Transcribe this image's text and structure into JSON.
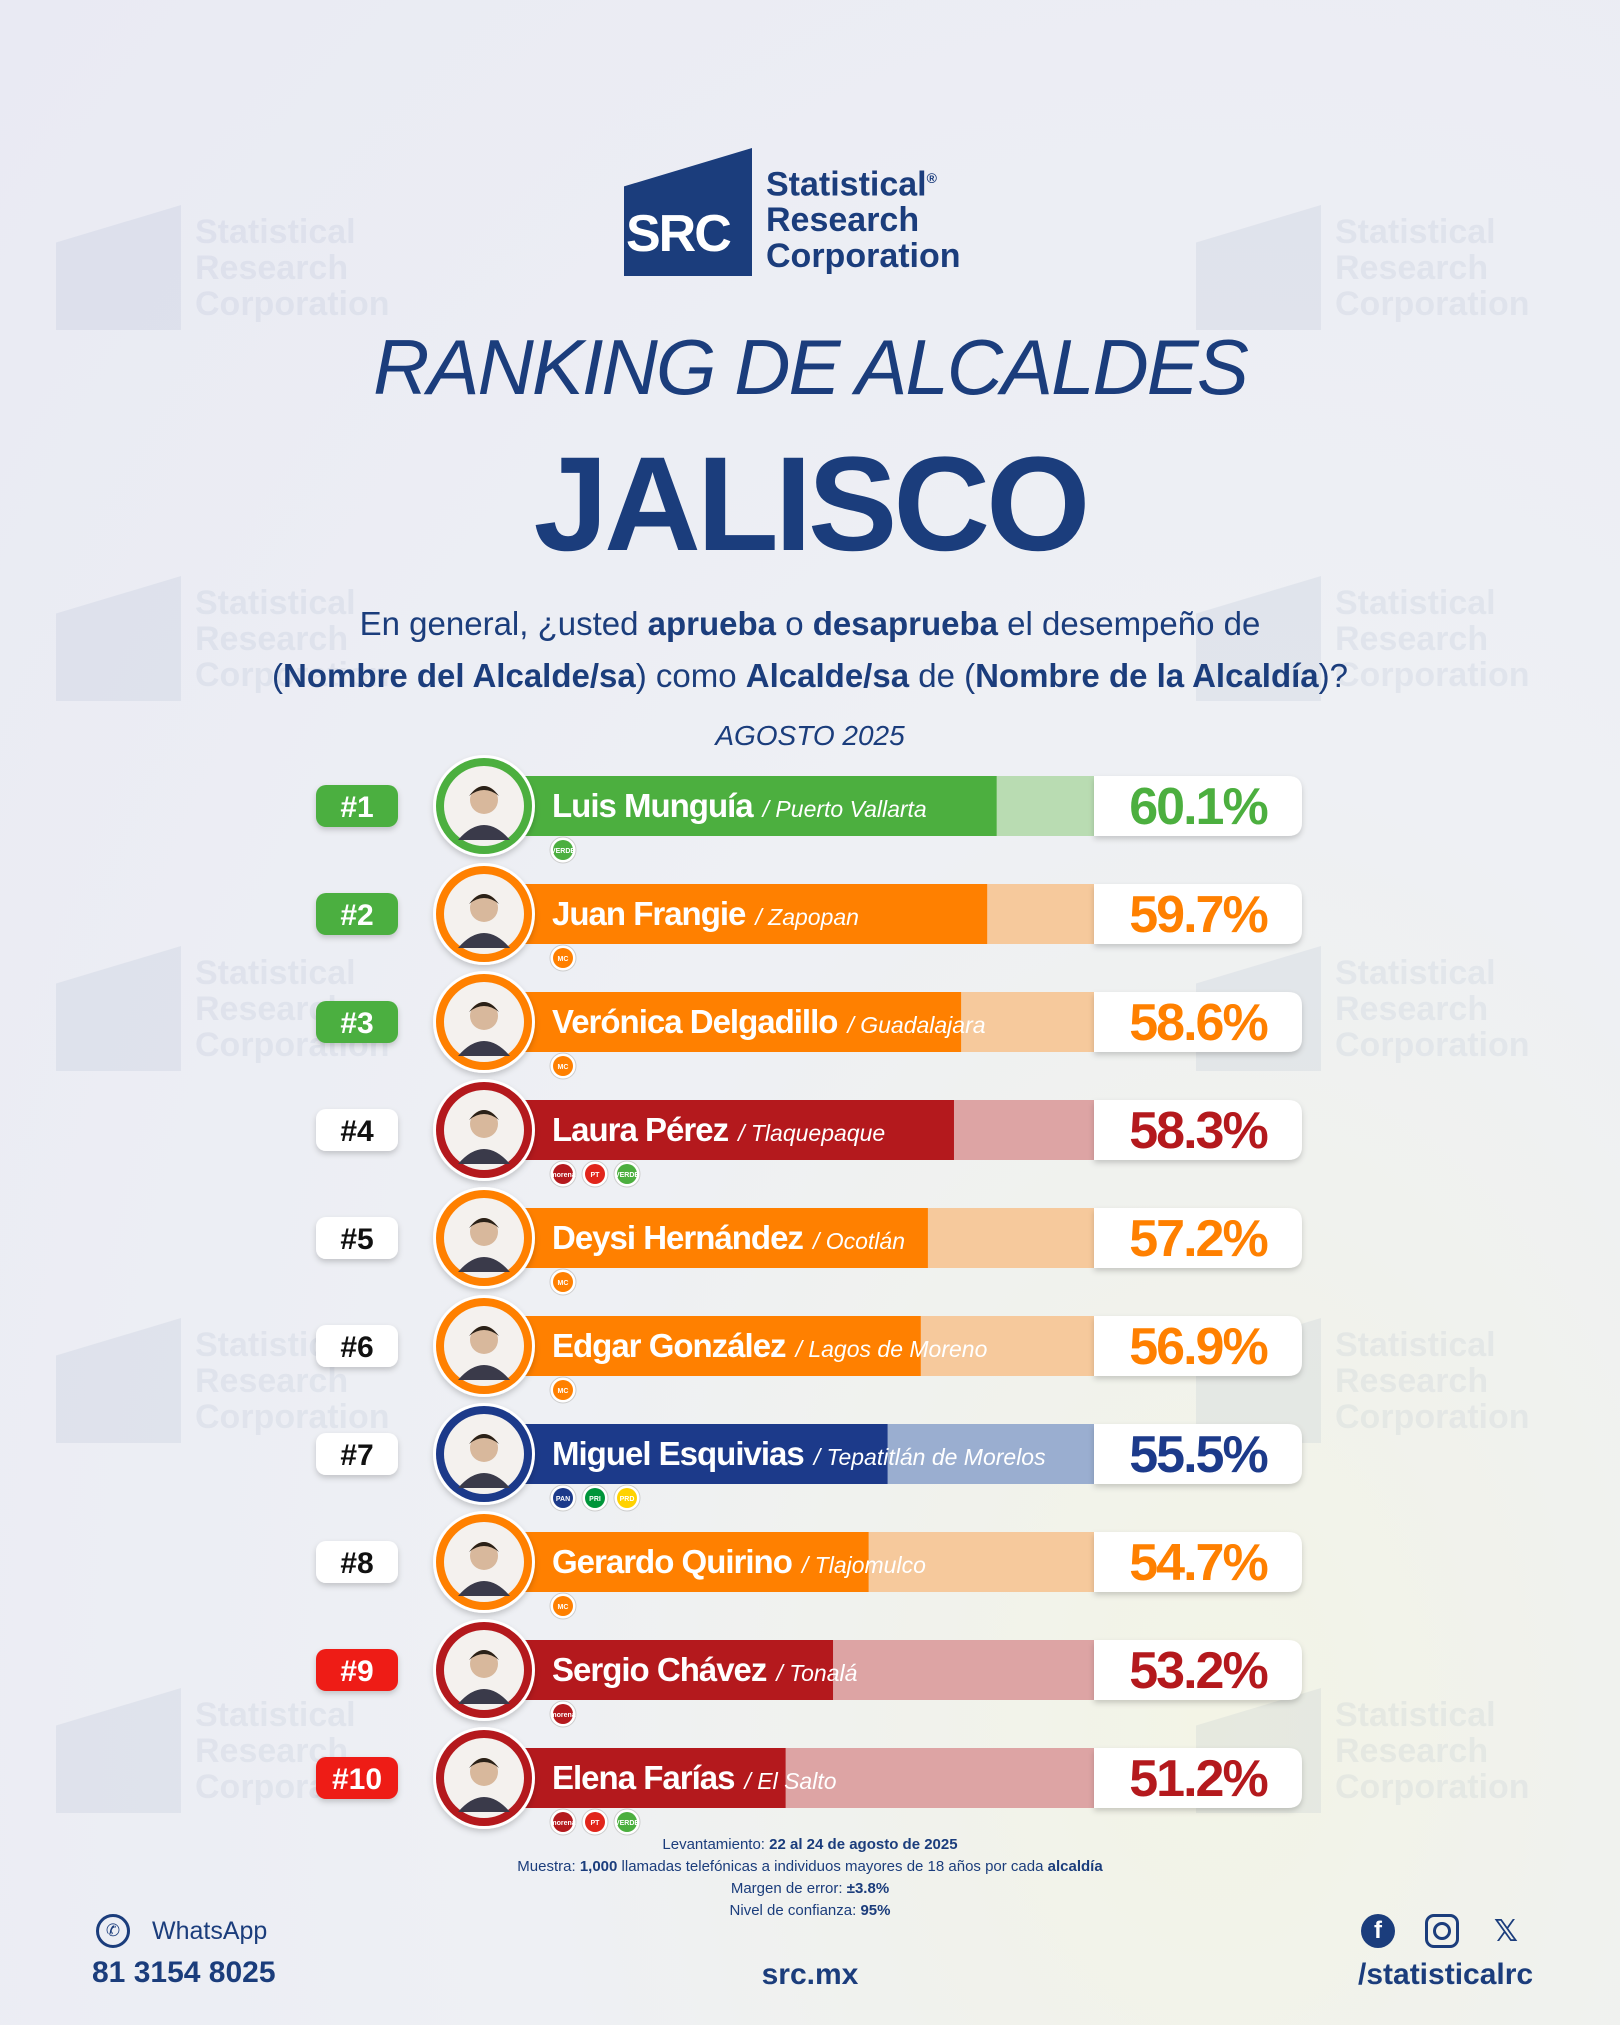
{
  "brand": {
    "abbr": "SRC",
    "line1": "Statistical",
    "line2": "Research",
    "line3": "Corporation",
    "registered": "®"
  },
  "title": {
    "italic": "RANKING DE ALCALDES",
    "main": "JALISCO"
  },
  "question": {
    "p1": "En general, ¿usted ",
    "b1": "aprueba",
    "p2": " o ",
    "b2": "desaprueba",
    "p3": " el desempeño de",
    "p4": "(",
    "b3": "Nombre del Alcalde/sa",
    "p5": ") como ",
    "b4": "Alcalde/sa",
    "p6": " de (",
    "b5": "Nombre de la Alcaldía",
    "p7": ")?"
  },
  "period": "AGOSTO 2025",
  "colors": {
    "verde": "#4caf3f",
    "mc": "#ff8000",
    "morena": "#b4191d",
    "pan": "#1c3a8a",
    "navy": "#1b3d7c",
    "rank_green": "#4caf3f",
    "rank_red": "#ee1c16"
  },
  "chart_data": {
    "type": "bar",
    "unit": "%",
    "xlim": [
      0,
      100
    ],
    "rows": [
      {
        "rank": "#1",
        "name": "Luis Munguía",
        "place": "Puerto Vallarta",
        "value": 60.1,
        "label": "60.1%",
        "party_color": "verde",
        "rank_style": "green",
        "parties": [
          {
            "label": "VERDE",
            "color": "#4caf3f"
          }
        ]
      },
      {
        "rank": "#2",
        "name": "Juan Frangie",
        "place": "Zapopan",
        "value": 59.7,
        "label": "59.7%",
        "party_color": "mc",
        "rank_style": "green",
        "parties": [
          {
            "label": "MC",
            "color": "#ff8000"
          }
        ]
      },
      {
        "rank": "#3",
        "name": "Verónica Delgadillo",
        "place": "Guadalajara",
        "value": 58.6,
        "label": "58.6%",
        "party_color": "mc",
        "rank_style": "green",
        "parties": [
          {
            "label": "MC",
            "color": "#ff8000"
          }
        ]
      },
      {
        "rank": "#4",
        "name": "Laura Pérez",
        "place": "Tlaquepaque",
        "value": 58.3,
        "label": "58.3%",
        "party_color": "morena",
        "rank_style": "white",
        "parties": [
          {
            "label": "morena",
            "color": "#b4191d"
          },
          {
            "label": "PT",
            "color": "#e1251b"
          },
          {
            "label": "VERDE",
            "color": "#4caf3f"
          }
        ]
      },
      {
        "rank": "#5",
        "name": "Deysi Hernández",
        "place": "Ocotlán",
        "value": 57.2,
        "label": "57.2%",
        "party_color": "mc",
        "rank_style": "white",
        "parties": [
          {
            "label": "MC",
            "color": "#ff8000"
          }
        ]
      },
      {
        "rank": "#6",
        "name": "Edgar González",
        "place": "Lagos de Moreno",
        "value": 56.9,
        "label": "56.9%",
        "party_color": "mc",
        "rank_style": "white",
        "parties": [
          {
            "label": "MC",
            "color": "#ff8000"
          }
        ]
      },
      {
        "rank": "#7",
        "name": "Miguel Esquivias",
        "place": "Tepatitlán de Morelos",
        "value": 55.5,
        "label": "55.5%",
        "party_color": "pan",
        "rank_style": "white",
        "parties": [
          {
            "label": "PAN",
            "color": "#1c3a8a"
          },
          {
            "label": "PRI",
            "color": "#00953a"
          },
          {
            "label": "PRD",
            "color": "#ffd200"
          }
        ]
      },
      {
        "rank": "#8",
        "name": "Gerardo Quirino",
        "place": "Tlajomulco",
        "value": 54.7,
        "label": "54.7%",
        "party_color": "mc",
        "rank_style": "white",
        "parties": [
          {
            "label": "MC",
            "color": "#ff8000"
          }
        ]
      },
      {
        "rank": "#9",
        "name": "Sergio Chávez",
        "place": "Tonalá",
        "value": 53.2,
        "label": "53.2%",
        "party_color": "morena",
        "rank_style": "red",
        "parties": [
          {
            "label": "morena",
            "color": "#b4191d"
          }
        ]
      },
      {
        "rank": "#10",
        "name": "Elena Farías",
        "place": "El Salto",
        "value": 51.2,
        "label": "51.2%",
        "party_color": "morena",
        "rank_style": "red",
        "parties": [
          {
            "label": "morena",
            "color": "#b4191d"
          },
          {
            "label": "PT",
            "color": "#e1251b"
          },
          {
            "label": "VERDE",
            "color": "#4caf3f"
          }
        ]
      }
    ]
  },
  "footnote": {
    "l1_label": "Levantamiento: ",
    "l1_value": "22 al 24 de agosto de 2025",
    "l2_label": "Muestra: ",
    "l2_value": "1,000",
    "l2_rest": " llamadas telefónicas a individuos mayores de 18 años por cada ",
    "l2_bold": "alcaldía",
    "l3_label": "Margen de error: ",
    "l3_value": "±3.8%",
    "l4_label": "Nivel de confianza: ",
    "l4_value": "95%"
  },
  "contact": {
    "whatsapp_label": "WhatsApp",
    "phone": "81 3154 8025",
    "site": "src.mx",
    "handle": "/statisticalrc",
    "icons": [
      "whatsapp-icon",
      "facebook-icon",
      "instagram-icon",
      "x-icon"
    ]
  }
}
